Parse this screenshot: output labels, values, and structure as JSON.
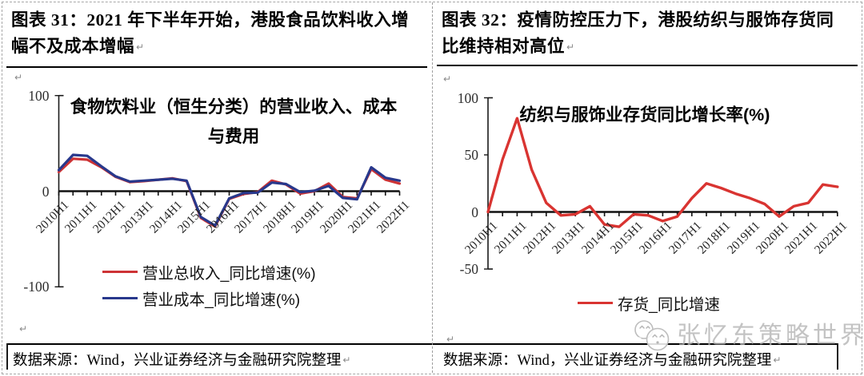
{
  "misc": {
    "return_mark": "↵"
  },
  "panels": [
    {
      "title": "图表 31：2021 年下半年开始，港股食品饮料收入增幅不及成本增幅",
      "source": "数据来源：Wind，兴业证券经济与金融研究院整理"
    },
    {
      "title": "图表 32：疫情防控压力下，港股纺织与服饰存货同比维持相对高位",
      "source": "数据来源：Wind，兴业证券经济与金融研究院整理"
    }
  ],
  "watermark": {
    "text": "张忆东策略世界"
  },
  "chart_data": [
    {
      "type": "line",
      "title": "食物饮料业（恒生分类）的营业收入、成本与费用",
      "x": [
        "2010H1",
        "2010H2",
        "2011H1",
        "2011H2",
        "2012H1",
        "2012H2",
        "2013H1",
        "2013H2",
        "2014H1",
        "2014H2",
        "2015H1",
        "2015H2",
        "2016H1",
        "2016H2",
        "2017H1",
        "2017H2",
        "2018H1",
        "2018H2",
        "2019H1",
        "2019H2",
        "2020H1",
        "2020H2",
        "2021H1",
        "2021H2",
        "2022H1"
      ],
      "x_tick_labels_shown": [
        "2010H1",
        "2011H1",
        "2012H1",
        "2013H1",
        "2014H1",
        "2015H1",
        "2016H1",
        "2017H1",
        "2018H1",
        "2019H1",
        "2020H1",
        "2021H1",
        "2022H1"
      ],
      "ylim": [
        -100,
        100
      ],
      "yticks": [
        100,
        0,
        -100
      ],
      "grid": false,
      "legend_position": "bottom-left",
      "series": [
        {
          "name": "营业总收入_同比增速(%)",
          "color": "#cd3335",
          "values": [
            20,
            34,
            33,
            25,
            15,
            9.5,
            10.5,
            12,
            13.5,
            10.5,
            -28,
            -37,
            -8,
            -3,
            -1,
            11,
            7,
            -2.5,
            0,
            8,
            -6,
            -7.5,
            23,
            12,
            8
          ]
        },
        {
          "name": "营业成本_同比增速(%)",
          "color": "#28388c",
          "values": [
            22,
            38,
            37,
            26,
            15.5,
            10,
            11,
            12,
            13,
            11,
            -27,
            -36,
            -7.5,
            -2,
            -1.5,
            9,
            7.5,
            -1,
            0.5,
            5.5,
            -7,
            -8.5,
            25,
            14,
            11
          ]
        }
      ]
    },
    {
      "type": "line",
      "title": "纺织与服饰业存货同比增长率(%)",
      "x": [
        "2010H1",
        "2010H2",
        "2011H1",
        "2011H2",
        "2012H1",
        "2012H2",
        "2013H1",
        "2013H2",
        "2014H1",
        "2014H2",
        "2015H1",
        "2015H2",
        "2016H1",
        "2016H2",
        "2017H1",
        "2017H2",
        "2018H1",
        "2018H2",
        "2019H1",
        "2019H2",
        "2020H1",
        "2020H2",
        "2021H1",
        "2021H2",
        "2022H1"
      ],
      "x_tick_labels_shown": [
        "2010H1",
        "2011H1",
        "2012H1",
        "2013H1",
        "2014H1",
        "2015H1",
        "2016H1",
        "2017H1",
        "2018H1",
        "2019H1",
        "2020H1",
        "2021H1",
        "2022H1"
      ],
      "ylim": [
        -50,
        100
      ],
      "yticks": [
        100,
        50,
        0,
        -50
      ],
      "grid": false,
      "legend_position": "bottom-center",
      "series": [
        {
          "name": "存货_同比增速",
          "color": "#d93431",
          "values": [
            0,
            46,
            82,
            37,
            8,
            -3,
            -2,
            5,
            -11,
            -13,
            -2,
            -3,
            -8,
            -4,
            12,
            25,
            21,
            16,
            12,
            7,
            -4,
            5,
            8,
            24,
            22
          ]
        }
      ]
    }
  ]
}
